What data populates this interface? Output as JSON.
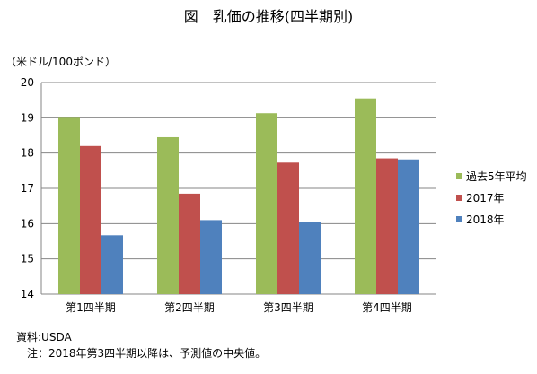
{
  "chart_data": {
    "type": "bar",
    "title": "図　乳価の推移(四半期別)",
    "unit_label": "（米ドル/100ポンド）",
    "categories": [
      "第1四半期",
      "第2四半期",
      "第3四半期",
      "第4四半期"
    ],
    "series": [
      {
        "name": "過去5年平均",
        "color": "#9BBB59",
        "values": [
          19.0,
          18.45,
          19.13,
          19.55
        ]
      },
      {
        "name": "2017年",
        "color": "#C0504D",
        "values": [
          18.2,
          16.85,
          17.73,
          17.85
        ]
      },
      {
        "name": "2018年",
        "color": "#4F81BD",
        "values": [
          15.67,
          16.1,
          16.05,
          17.82
        ]
      }
    ],
    "ylim": [
      14,
      20
    ],
    "yticks": [
      14,
      15,
      16,
      17,
      18,
      19,
      20
    ],
    "grid": true,
    "legend_position": "right",
    "source": "資料:USDA",
    "note": "注：2018年第3四半期以降は、予測値の中央値。"
  }
}
